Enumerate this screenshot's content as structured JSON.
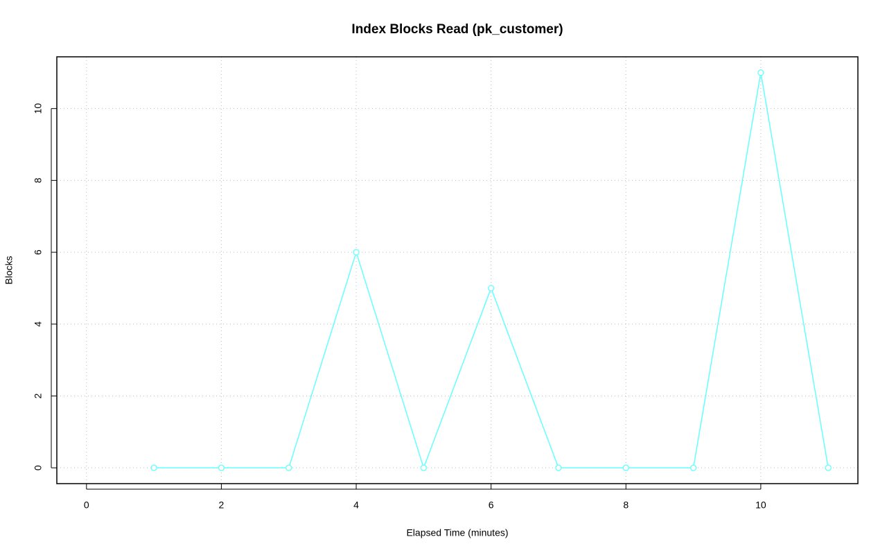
{
  "chart_data": {
    "type": "line",
    "title": "Index Blocks Read (pk_customer)",
    "x_label": "Elapsed Time (minutes)",
    "y_label": "Blocks",
    "x": [
      1,
      2,
      3,
      4,
      5,
      6,
      7,
      8,
      9,
      10,
      11
    ],
    "series": [
      {
        "name": "pk_customer",
        "color": "#66ffff",
        "values": [
          0,
          0,
          0,
          6,
          0,
          5,
          0,
          0,
          0,
          11,
          0
        ]
      }
    ],
    "xlim": [
      -0.44,
      11.44
    ],
    "xticks": [
      0,
      2,
      4,
      6,
      8,
      10
    ],
    "ylim": [
      -0.44,
      11.44
    ],
    "yticks": [
      0,
      2,
      4,
      6,
      8,
      10
    ],
    "grid": true,
    "markers": true
  }
}
